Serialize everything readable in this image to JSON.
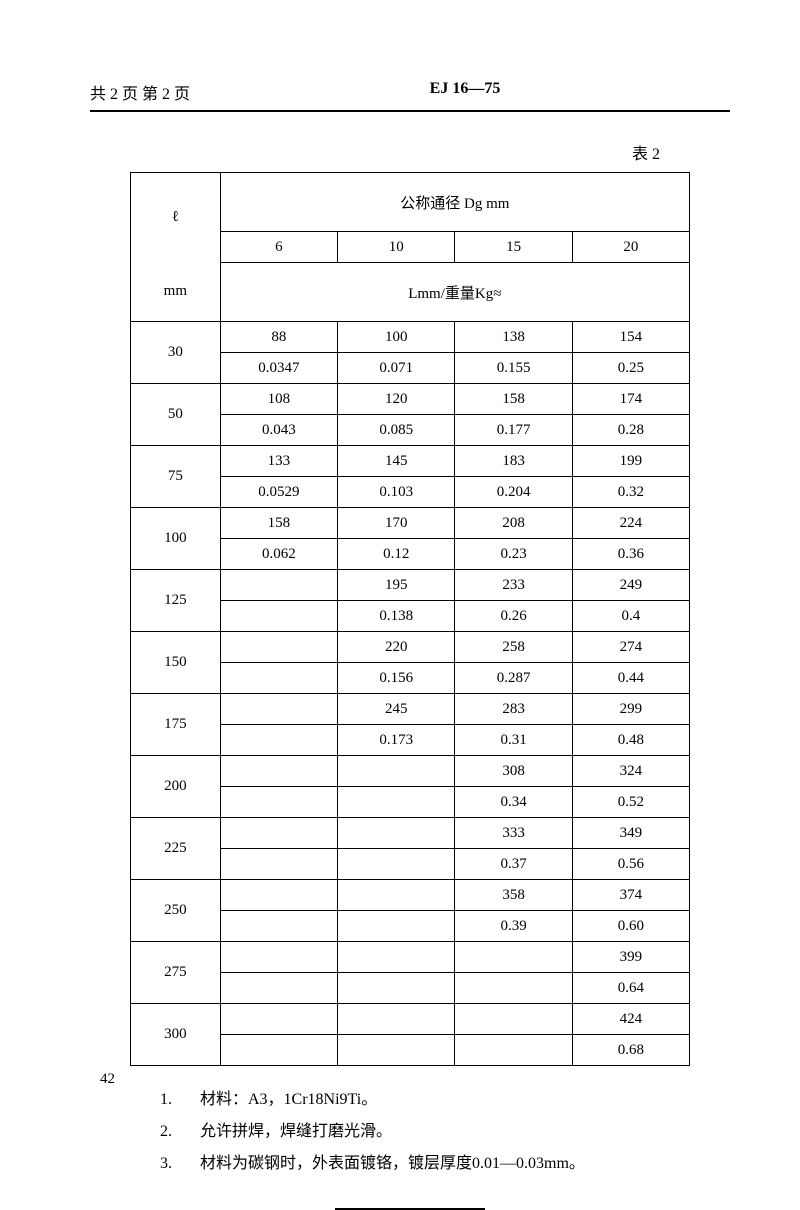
{
  "header": {
    "page_info": "共 2 页  第 2 页",
    "doc_code": "EJ 16—75"
  },
  "table": {
    "label": "表 2",
    "row_header_top": "ℓ",
    "row_header_unit": "mm",
    "col_group_title": "公称通径  Dg  mm",
    "columns": [
      "6",
      "10",
      "15",
      "20"
    ],
    "sub_header": "Lmm/重量Kg≈",
    "rows": [
      {
        "t": "30",
        "v": [
          [
            "88",
            "0.0347"
          ],
          [
            "100",
            "0.071"
          ],
          [
            "138",
            "0.155"
          ],
          [
            "154",
            "0.25"
          ]
        ]
      },
      {
        "t": "50",
        "v": [
          [
            "108",
            "0.043"
          ],
          [
            "120",
            "0.085"
          ],
          [
            "158",
            "0.177"
          ],
          [
            "174",
            "0.28"
          ]
        ]
      },
      {
        "t": "75",
        "v": [
          [
            "133",
            "0.0529"
          ],
          [
            "145",
            "0.103"
          ],
          [
            "183",
            "0.204"
          ],
          [
            "199",
            "0.32"
          ]
        ]
      },
      {
        "t": "100",
        "v": [
          [
            "158",
            "0.062"
          ],
          [
            "170",
            "0.12"
          ],
          [
            "208",
            "0.23"
          ],
          [
            "224",
            "0.36"
          ]
        ]
      },
      {
        "t": "125",
        "v": [
          [
            "",
            ""
          ],
          [
            "195",
            "0.138"
          ],
          [
            "233",
            "0.26"
          ],
          [
            "249",
            "0.4"
          ]
        ]
      },
      {
        "t": "150",
        "v": [
          [
            "",
            ""
          ],
          [
            "220",
            "0.156"
          ],
          [
            "258",
            "0.287"
          ],
          [
            "274",
            "0.44"
          ]
        ]
      },
      {
        "t": "175",
        "v": [
          [
            "",
            ""
          ],
          [
            "245",
            "0.173"
          ],
          [
            "283",
            "0.31"
          ],
          [
            "299",
            "0.48"
          ]
        ]
      },
      {
        "t": "200",
        "v": [
          [
            "",
            ""
          ],
          [
            "",
            ""
          ],
          [
            "308",
            "0.34"
          ],
          [
            "324",
            "0.52"
          ]
        ]
      },
      {
        "t": "225",
        "v": [
          [
            "",
            ""
          ],
          [
            "",
            ""
          ],
          [
            "333",
            "0.37"
          ],
          [
            "349",
            "0.56"
          ]
        ]
      },
      {
        "t": "250",
        "v": [
          [
            "",
            ""
          ],
          [
            "",
            ""
          ],
          [
            "358",
            "0.39"
          ],
          [
            "374",
            "0.60"
          ]
        ]
      },
      {
        "t": "275",
        "v": [
          [
            "",
            ""
          ],
          [
            "",
            ""
          ],
          [
            "",
            ""
          ],
          [
            "399",
            "0.64"
          ]
        ]
      },
      {
        "t": "300",
        "v": [
          [
            "",
            ""
          ],
          [
            "",
            ""
          ],
          [
            "",
            ""
          ],
          [
            "424",
            "0.68"
          ]
        ]
      }
    ]
  },
  "notes": [
    {
      "n": "1.",
      "text": "材料：A3，1Cr18Ni9Ti。"
    },
    {
      "n": "2.",
      "text": "允许拼焊，焊缝打磨光滑。"
    },
    {
      "n": "3.",
      "text": "材料为碳钢时，外表面镀铬，镀层厚度0.01—0.03mm。"
    }
  ],
  "page_number": "42"
}
